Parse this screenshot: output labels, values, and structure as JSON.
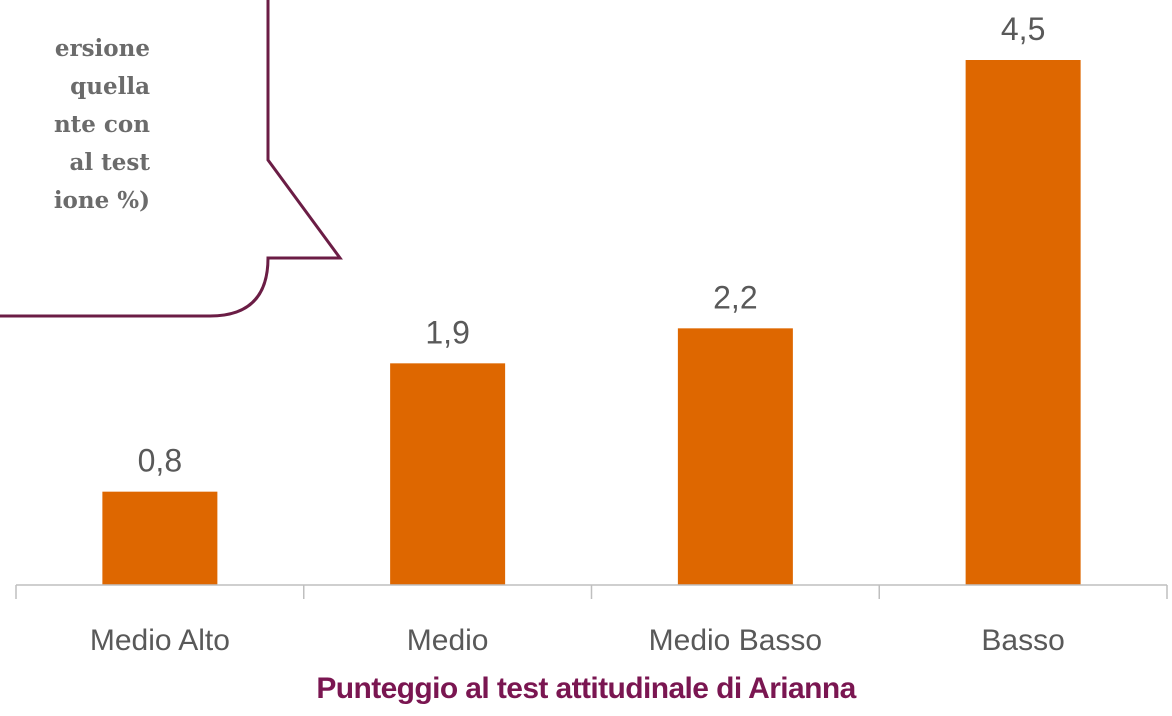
{
  "chart_data": {
    "type": "bar",
    "categories": [
      "Medio Alto",
      "Medio",
      "Medio Basso",
      "Basso"
    ],
    "values": [
      0.8,
      1.9,
      2.2,
      4.5
    ],
    "value_labels": [
      "0,8",
      "1,9",
      "2,2",
      "4,5"
    ],
    "xlabel": "Punteggio al test attitudinale di Arianna",
    "ylabel": "",
    "ylim": [
      0,
      4.5
    ],
    "grid": false,
    "bar_color": "#de6700",
    "label_color": "#595959",
    "xlabel_color": "#7a1651",
    "callout_border_color": "#6b1d45",
    "callout_text_lines": [
      "ersione",
      "quella",
      "nte con",
      "al test",
      "ione %)"
    ]
  }
}
